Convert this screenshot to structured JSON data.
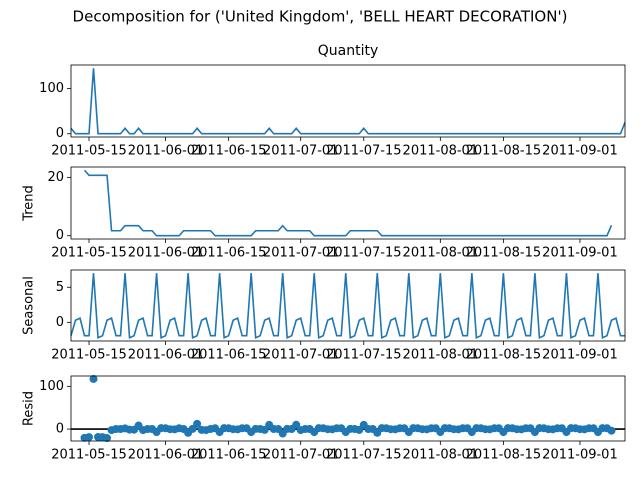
{
  "chart_data": {
    "title": "Decomposition for ('United Kingdom', 'BELL HEART DECORATION')",
    "x": [
      "2011-05-11",
      "2011-05-12",
      "2011-05-13",
      "2011-05-14",
      "2011-05-15",
      "2011-05-16",
      "2011-05-17",
      "2011-05-18",
      "2011-05-19",
      "2011-05-20",
      "2011-05-21",
      "2011-05-22",
      "2011-05-23",
      "2011-05-24",
      "2011-05-25",
      "2011-05-26",
      "2011-05-27",
      "2011-05-28",
      "2011-05-29",
      "2011-05-30",
      "2011-05-31",
      "2011-06-01",
      "2011-06-02",
      "2011-06-03",
      "2011-06-04",
      "2011-06-05",
      "2011-06-06",
      "2011-06-07",
      "2011-06-08",
      "2011-06-09",
      "2011-06-10",
      "2011-06-11",
      "2011-06-12",
      "2011-06-13",
      "2011-06-14",
      "2011-06-15",
      "2011-06-16",
      "2011-06-17",
      "2011-06-18",
      "2011-06-19",
      "2011-06-20",
      "2011-06-21",
      "2011-06-22",
      "2011-06-23",
      "2011-06-24",
      "2011-06-25",
      "2011-06-26",
      "2011-06-27",
      "2011-06-28",
      "2011-06-29",
      "2011-06-30",
      "2011-07-01",
      "2011-07-02",
      "2011-07-03",
      "2011-07-04",
      "2011-07-05",
      "2011-07-06",
      "2011-07-07",
      "2011-07-08",
      "2011-07-09",
      "2011-07-10",
      "2011-07-11",
      "2011-07-12",
      "2011-07-13",
      "2011-07-14",
      "2011-07-15",
      "2011-07-16",
      "2011-07-17",
      "2011-07-18",
      "2011-07-19",
      "2011-07-20",
      "2011-07-21",
      "2011-07-22",
      "2011-07-23",
      "2011-07-24",
      "2011-07-25",
      "2011-07-26",
      "2011-07-27",
      "2011-07-28",
      "2011-07-29",
      "2011-07-30",
      "2011-07-31",
      "2011-08-01",
      "2011-08-02",
      "2011-08-03",
      "2011-08-04",
      "2011-08-05",
      "2011-08-06",
      "2011-08-07",
      "2011-08-08",
      "2011-08-09",
      "2011-08-10",
      "2011-08-11",
      "2011-08-12",
      "2011-08-13",
      "2011-08-14",
      "2011-08-15",
      "2011-08-16",
      "2011-08-17",
      "2011-08-18",
      "2011-08-19",
      "2011-08-20",
      "2011-08-21",
      "2011-08-22",
      "2011-08-23",
      "2011-08-24",
      "2011-08-25",
      "2011-08-26",
      "2011-08-27",
      "2011-08-28",
      "2011-08-29",
      "2011-08-30",
      "2011-08-31",
      "2011-09-01",
      "2011-09-02",
      "2011-09-03",
      "2011-09-04",
      "2011-09-05",
      "2011-09-06",
      "2011-09-07",
      "2011-09-08",
      "2011-09-09",
      "2011-09-10",
      "2011-09-11"
    ],
    "xlim": [
      "2011-05-11",
      "2011-09-11"
    ],
    "xticks": [
      "2011-05-15",
      "2011-06-01",
      "2011-06-15",
      "2011-07-01",
      "2011-07-15",
      "2011-08-01",
      "2011-08-15",
      "2011-09-01"
    ],
    "panels": [
      {
        "type": "line",
        "title": "Quantity",
        "color": "#1f77b4",
        "ylim": [
          -7.25,
          152.25
        ],
        "yticks": [
          0,
          100
        ],
        "values": [
          12,
          0,
          0,
          0,
          0,
          145,
          0,
          0,
          0,
          0,
          0,
          0,
          12,
          0,
          0,
          12,
          0,
          0,
          0,
          0,
          0,
          0,
          0,
          0,
          0,
          0,
          0,
          0,
          12,
          0,
          0,
          0,
          0,
          0,
          0,
          0,
          0,
          0,
          0,
          0,
          0,
          0,
          0,
          0,
          12,
          0,
          0,
          0,
          0,
          0,
          12,
          0,
          0,
          0,
          0,
          0,
          0,
          0,
          0,
          0,
          0,
          0,
          0,
          0,
          0,
          12,
          0,
          0,
          0,
          0,
          0,
          0,
          0,
          0,
          0,
          0,
          0,
          0,
          0,
          0,
          0,
          0,
          0,
          0,
          0,
          0,
          0,
          0,
          0,
          0,
          0,
          0,
          0,
          0,
          0,
          0,
          0,
          0,
          0,
          0,
          0,
          0,
          0,
          0,
          0,
          0,
          0,
          0,
          0,
          0,
          0,
          0,
          0,
          0,
          0,
          0,
          0,
          0,
          0,
          0,
          0,
          0,
          0,
          25
        ]
      },
      {
        "type": "line",
        "ylabel": "Trend",
        "color": "#1f77b4",
        "ylim": [
          -1.12,
          23.55
        ],
        "yticks": [
          0,
          20
        ],
        "values": [
          null,
          null,
          null,
          22.43,
          20.71,
          20.71,
          20.71,
          20.71,
          20.71,
          1.71,
          1.71,
          1.71,
          3.43,
          3.43,
          3.43,
          3.43,
          1.71,
          1.71,
          1.71,
          0,
          0,
          0,
          0,
          0,
          0,
          1.71,
          1.71,
          1.71,
          1.71,
          1.71,
          1.71,
          1.71,
          0,
          0,
          0,
          0,
          0,
          0,
          0,
          0,
          0,
          1.71,
          1.71,
          1.71,
          1.71,
          1.71,
          1.71,
          3.43,
          1.71,
          1.71,
          1.71,
          1.71,
          1.71,
          1.71,
          0,
          0,
          0,
          0,
          0,
          0,
          0,
          0,
          1.71,
          1.71,
          1.71,
          1.71,
          1.71,
          1.71,
          1.71,
          0,
          0,
          0,
          0,
          0,
          0,
          0,
          0,
          0,
          0,
          0,
          0,
          0,
          0,
          0,
          0,
          0,
          0,
          0,
          0,
          0,
          0,
          0,
          0,
          0,
          0,
          0,
          0,
          0,
          0,
          0,
          0,
          0,
          0,
          0,
          0,
          0,
          0,
          0,
          0,
          0,
          0,
          0,
          0,
          0,
          0,
          0,
          0,
          0,
          0,
          0,
          3.57,
          null,
          null,
          null
        ]
      },
      {
        "type": "line",
        "ylabel": "Seasonal",
        "color": "#1f77b4",
        "ylim": [
          -2.66,
          7.46
        ],
        "yticks": [
          0,
          5
        ],
        "values": [
          -1.9,
          0.3,
          0.6,
          -1.9,
          -1.9,
          7.0,
          -2.2,
          -1.9,
          0.3,
          0.6,
          -1.9,
          -1.9,
          7.0,
          -2.2,
          -1.9,
          0.3,
          0.6,
          -1.9,
          -1.9,
          7.0,
          -2.2,
          -1.9,
          0.3,
          0.6,
          -1.9,
          -1.9,
          7.0,
          -2.2,
          -1.9,
          0.3,
          0.6,
          -1.9,
          -1.9,
          7.0,
          -2.2,
          -1.9,
          0.3,
          0.6,
          -1.9,
          -1.9,
          7.0,
          -2.2,
          -1.9,
          0.3,
          0.6,
          -1.9,
          -1.9,
          7.0,
          -2.2,
          -1.9,
          0.3,
          0.6,
          -1.9,
          -1.9,
          7.0,
          -2.2,
          -1.9,
          0.3,
          0.6,
          -1.9,
          -1.9,
          7.0,
          -2.2,
          -1.9,
          0.3,
          0.6,
          -1.9,
          -1.9,
          7.0,
          -2.2,
          -1.9,
          0.3,
          0.6,
          -1.9,
          -1.9,
          7.0,
          -2.2,
          -1.9,
          0.3,
          0.6,
          -1.9,
          -1.9,
          7.0,
          -2.2,
          -1.9,
          0.3,
          0.6,
          -1.9,
          -1.9,
          7.0,
          -2.2,
          -1.9,
          0.3,
          0.6,
          -1.9,
          -1.9,
          7.0,
          -2.2,
          -1.9,
          0.3,
          0.6,
          -1.9,
          -1.9,
          7.0,
          -2.2,
          -1.9,
          0.3,
          0.6,
          -1.9,
          -1.9,
          7.0,
          -2.2,
          -1.9,
          0.3,
          0.6,
          -1.9,
          -1.9,
          7.0,
          -2.2,
          -1.9,
          0.3,
          0.6,
          -1.9,
          -1.9
        ]
      },
      {
        "type": "scatter",
        "ylabel": "Resid",
        "color": "#1f77b4",
        "zero_line": true,
        "ylim": [
          -27.9,
          124.2
        ],
        "yticks": [
          0,
          100
        ],
        "values": [
          null,
          null,
          null,
          -20.53,
          -18.81,
          117.29,
          -18.51,
          -18.81,
          -21.01,
          -2.31,
          0.19,
          0.19,
          1.57,
          -1.23,
          -1.53,
          8.27,
          -2.31,
          0.19,
          0.19,
          -7,
          2.2,
          1.9,
          -0.3,
          -0.6,
          1.9,
          0.19,
          -8.71,
          0.49,
          12.19,
          -2.01,
          -2.31,
          0.19,
          1.9,
          -7,
          2.2,
          1.9,
          -0.3,
          -0.6,
          1.9,
          1.9,
          -7,
          0.49,
          0.19,
          -2.01,
          9.69,
          0.19,
          0.19,
          -10.43,
          0.49,
          0.19,
          9.99,
          -2.31,
          0.19,
          0.19,
          -7,
          2.2,
          1.9,
          -0.3,
          -0.6,
          1.9,
          1.9,
          -7,
          0.49,
          0.19,
          -2.01,
          9.69,
          0.19,
          0.19,
          -8.71,
          2.2,
          1.9,
          -0.3,
          -0.6,
          1.9,
          1.9,
          -7,
          2.2,
          1.9,
          -0.3,
          -0.6,
          1.9,
          1.9,
          -7,
          2.2,
          1.9,
          -0.3,
          -0.6,
          1.9,
          1.9,
          -7,
          2.2,
          1.9,
          -0.3,
          -0.6,
          1.9,
          1.9,
          -7,
          2.2,
          1.9,
          -0.3,
          -0.6,
          1.9,
          1.9,
          -7,
          2.2,
          1.9,
          -0.3,
          -0.6,
          1.9,
          1.9,
          -7,
          2.2,
          1.9,
          -0.3,
          -0.6,
          1.9,
          1.9,
          -7,
          2.2,
          1.9,
          -3.87,
          null,
          null,
          null
        ]
      }
    ]
  }
}
